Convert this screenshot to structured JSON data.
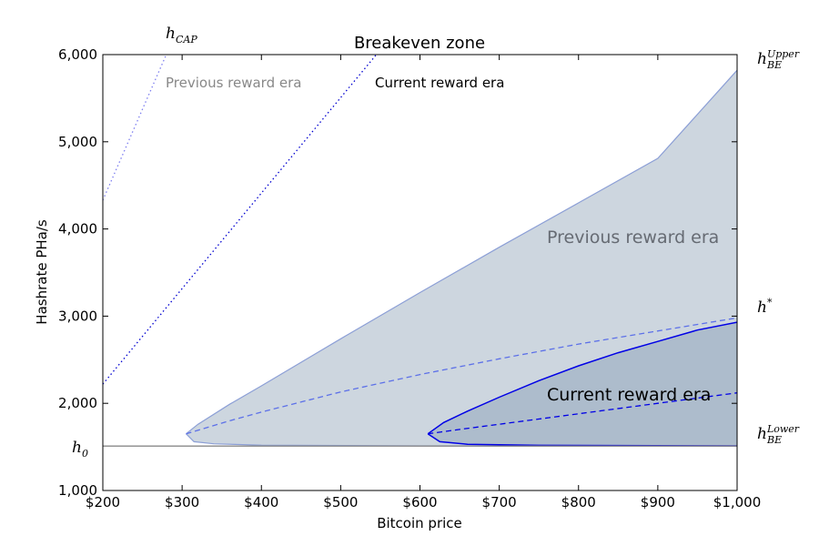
{
  "chart_data": {
    "type": "area",
    "title": "Breakeven zone",
    "xlabel": "Bitcoin price",
    "ylabel": "Hashrate PHa/s",
    "xlim": [
      200,
      1000
    ],
    "ylim": [
      1000,
      6000
    ],
    "x_ticks": [
      {
        "value": 200,
        "label": "$200"
      },
      {
        "value": 300,
        "label": "$300"
      },
      {
        "value": 400,
        "label": "$400"
      },
      {
        "value": 500,
        "label": "$500"
      },
      {
        "value": 600,
        "label": "$600"
      },
      {
        "value": 700,
        "label": "$700"
      },
      {
        "value": 800,
        "label": "$800"
      },
      {
        "value": 900,
        "label": "$900"
      },
      {
        "value": 1000,
        "label": "$1,000"
      }
    ],
    "y_ticks": [
      {
        "value": 1000,
        "label": "1,000"
      },
      {
        "value": 2000,
        "label": "2,000"
      },
      {
        "value": 3000,
        "label": "3,000"
      },
      {
        "value": 4000,
        "label": "4,000"
      },
      {
        "value": 5000,
        "label": "5,000"
      },
      {
        "value": 6000,
        "label": "6,000"
      }
    ],
    "grid": false,
    "h0": 1510,
    "zones": [
      {
        "label": "Previous reward era",
        "fill": "#cdd6df",
        "line_color": "#8c9fd6",
        "mid_color": "#5c70e8",
        "upper": [
          [
            305,
            1650
          ],
          [
            320,
            1760
          ],
          [
            360,
            1990
          ],
          [
            400,
            2200
          ],
          [
            500,
            2740
          ],
          [
            600,
            3270
          ],
          [
            700,
            3790
          ],
          [
            800,
            4300
          ],
          [
            900,
            4810
          ],
          [
            1000,
            5820
          ]
        ],
        "lower": [
          [
            305,
            1650
          ],
          [
            315,
            1560
          ],
          [
            340,
            1535
          ],
          [
            400,
            1520
          ],
          [
            600,
            1512
          ],
          [
            1000,
            1510
          ]
        ],
        "middle": [
          [
            305,
            1650
          ],
          [
            360,
            1800
          ],
          [
            400,
            1900
          ],
          [
            500,
            2130
          ],
          [
            600,
            2330
          ],
          [
            700,
            2510
          ],
          [
            800,
            2680
          ],
          [
            900,
            2830
          ],
          [
            1000,
            2980
          ]
        ]
      },
      {
        "label": "Current reward era",
        "fill": "#adbccc",
        "line_color": "#0000e6",
        "mid_color": "#0000e6",
        "upper": [
          [
            610,
            1650
          ],
          [
            630,
            1780
          ],
          [
            660,
            1910
          ],
          [
            700,
            2070
          ],
          [
            750,
            2260
          ],
          [
            800,
            2430
          ],
          [
            850,
            2580
          ],
          [
            900,
            2710
          ],
          [
            950,
            2840
          ],
          [
            1000,
            2930
          ]
        ],
        "lower": [
          [
            610,
            1650
          ],
          [
            625,
            1560
          ],
          [
            660,
            1530
          ],
          [
            750,
            1518
          ],
          [
            1000,
            1512
          ]
        ],
        "middle": [
          [
            610,
            1650
          ],
          [
            650,
            1700
          ],
          [
            700,
            1760
          ],
          [
            800,
            1880
          ],
          [
            900,
            2000
          ],
          [
            1000,
            2120
          ]
        ]
      }
    ],
    "cap_lines": [
      {
        "label": "Previous reward era",
        "color": "#7d7ef0",
        "label_color": "#888888",
        "points": [
          [
            200,
            4330
          ],
          [
            280,
            6000
          ]
        ]
      },
      {
        "label": "Current reward era",
        "color": "#0000d0",
        "label_color": "#000000",
        "points": [
          [
            200,
            2220
          ],
          [
            545,
            6000
          ]
        ]
      }
    ],
    "annotations": {
      "h_cap": "h",
      "h_cap_sub": "CAP",
      "h_upper": "h",
      "h_upper_sub": "BE",
      "h_upper_sup": "Upper",
      "h_star": "h",
      "h_star_sup": "*",
      "h_lower": "h",
      "h_lower_sub": "BE",
      "h_lower_sup": "Lower",
      "h0": "h",
      "h0_sub": "0"
    }
  }
}
